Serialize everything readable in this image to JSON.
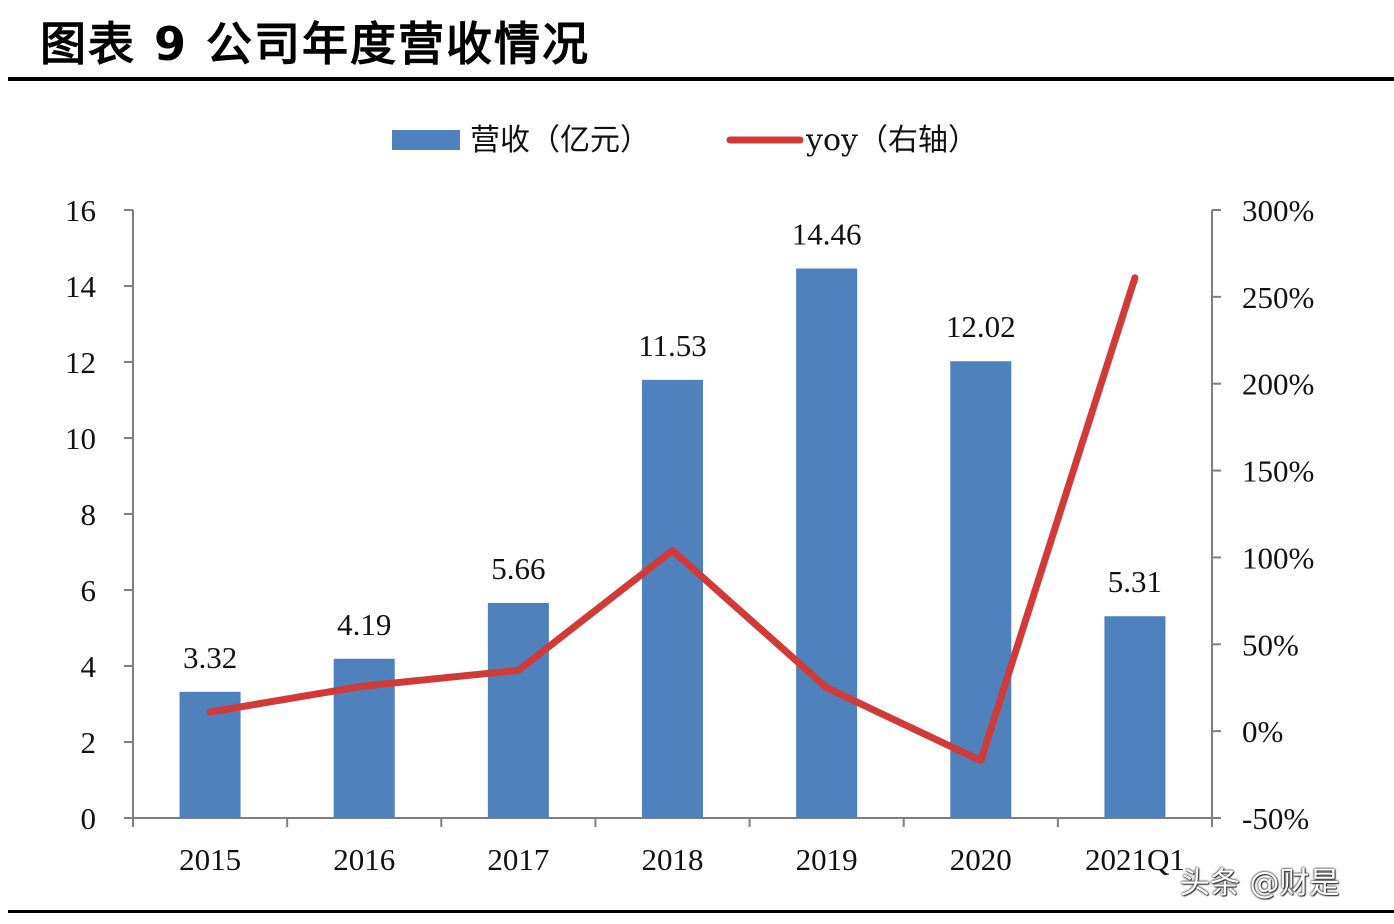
{
  "page": {
    "title": "图表 9 公司年度营收情况",
    "watermark": "头条 @财是"
  },
  "chart_data": {
    "type": "bar",
    "categories": [
      "2015",
      "2016",
      "2017",
      "2018",
      "2019",
      "2020",
      "2021Q1"
    ],
    "series": [
      {
        "name": "营收（亿元）",
        "type": "bar",
        "axis": "left",
        "color": "#4f81bd",
        "values": [
          3.32,
          4.19,
          5.66,
          11.53,
          14.46,
          12.02,
          5.31
        ],
        "labels": [
          "3.32",
          "4.19",
          "5.66",
          "11.53",
          "14.46",
          "12.02",
          "5.31"
        ]
      },
      {
        "name": "yoy（右轴）",
        "type": "line",
        "axis": "right",
        "color": "#d13a36",
        "values": [
          11,
          26,
          35,
          104,
          25,
          -17,
          261
        ]
      }
    ],
    "y_left": {
      "min": 0,
      "max": 16,
      "ticks": [
        0,
        2,
        4,
        6,
        8,
        10,
        12,
        14,
        16
      ],
      "tick_labels": [
        "0",
        "2",
        "4",
        "6",
        "8",
        "10",
        "12",
        "14",
        "16"
      ]
    },
    "y_right": {
      "min": -50,
      "max": 300,
      "ticks": [
        -50,
        0,
        50,
        100,
        150,
        200,
        250,
        300
      ],
      "tick_labels": [
        "-50%",
        "0%",
        "50%",
        "100%",
        "150%",
        "200%",
        "250%",
        "300%"
      ]
    },
    "legend_position": "top-center",
    "grid": false
  }
}
